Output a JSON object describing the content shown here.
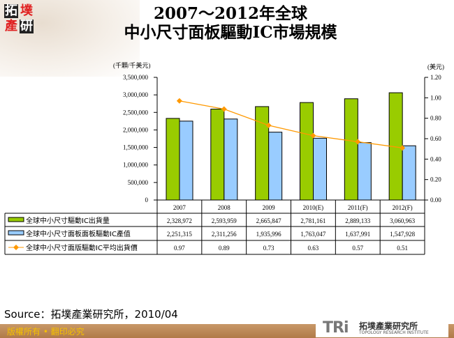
{
  "logo": {
    "chars": [
      "拓",
      "墣",
      "產",
      "研"
    ]
  },
  "title_line1": "2007～2012年全球",
  "title_line2": "中小尺寸面板驅動IC市場規模",
  "source": "Source：拓墣產業研究所，2010/04",
  "footer": {
    "copyright": "版權所有 • 翻印必究",
    "brand": "TRi",
    "brand_cn": "拓墣產業研究所",
    "brand_en": "TOPOLOGY RESEARCH INSTITUTE"
  },
  "colors": {
    "shipments": "#99cc00",
    "value": "#99ccff",
    "price": "#ff9900"
  },
  "chart_data": {
    "type": "bar",
    "categories": [
      "2007",
      "2008",
      "2009",
      "2010(E)",
      "2011(F)",
      "2012(F)"
    ],
    "ylabel_left": "(千顆/千美元)",
    "ylabel_right": "(美元)",
    "ylim_left": [
      0,
      3500000
    ],
    "ylim_right": [
      0,
      1.2
    ],
    "yticks_left": [
      "0",
      "500,000",
      "1,000,000",
      "1,500,000",
      "2,000,000",
      "2,500,000",
      "3,000,000",
      "3,500,000"
    ],
    "yticks_right": [
      "0.00",
      "0.20",
      "0.40",
      "0.60",
      "0.80",
      "1.00",
      "1.20"
    ],
    "grid": false,
    "legend": "data-table",
    "series": [
      {
        "name": "全球中小尺寸驅動IC出貨量",
        "type": "bar",
        "axis": "left",
        "values": [
          2328972,
          2593959,
          2665847,
          2781161,
          2889133,
          3060963
        ],
        "labels": [
          "2,328,972",
          "2,593,959",
          "2,665,847",
          "2,781,161",
          "2,889,133",
          "3,060,963"
        ]
      },
      {
        "name": "全球中小尺寸面板面板驅動IC產值",
        "type": "bar",
        "axis": "left",
        "values": [
          2251315,
          2311256,
          1935996,
          1763047,
          1637991,
          1547928
        ],
        "labels": [
          "2,251,315",
          "2,311,256",
          "1,935,996",
          "1,763,047",
          "1,637,991",
          "1,547,928"
        ]
      },
      {
        "name": "全球中小尺寸面版驅動IC平均出貨價",
        "type": "line",
        "axis": "right",
        "values": [
          0.97,
          0.89,
          0.73,
          0.63,
          0.57,
          0.51
        ],
        "labels": [
          "0.97",
          "0.89",
          "0.73",
          "0.63",
          "0.57",
          "0.51"
        ]
      }
    ]
  }
}
